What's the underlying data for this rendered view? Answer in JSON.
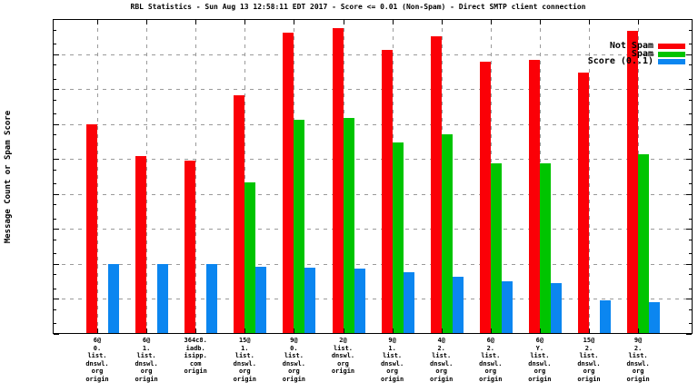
{
  "title": "RBL Statistics - Sun Aug 13 12:58:11 EDT 2017 - Score <= 0.01 (Non-Spam) - Direct SMTP client connection",
  "y_axis": {
    "label": "Message Count or Spam Score",
    "ticks": [
      "100000",
      "10000",
      "1000",
      "100",
      "10",
      "1",
      "0.1",
      "0.01",
      "0.001",
      "0.0001"
    ]
  },
  "legend": [
    {
      "label": "Not Spam",
      "color": "#fb0007"
    },
    {
      "label": "Spam",
      "color": "#00c400"
    },
    {
      "label": "Score (0..1)",
      "color": "#0b86f0"
    }
  ],
  "colors": {
    "axis": "#000000",
    "grid": "#9a9a9a",
    "background": "#ffffff"
  },
  "chart_data": {
    "type": "bar",
    "scale": "log",
    "ylim": [
      0.0001,
      100000
    ],
    "grid": "dashed-both-axes",
    "legend_position": "top-right-inside",
    "title": "RBL Statistics - Sun Aug 13 12:58:11 EDT 2017 - Score <= 0.01 (Non-Spam) - Direct SMTP client connection",
    "ylabel": "Message Count or Spam Score",
    "categories": [
      "6@\n0.\nlist.\ndnswl.\norg\norigin",
      "6@\n1.\nlist.\ndnswl.\norg\norigin",
      "364c8.\niadb.\nisipp.\ncom\norigin",
      "15@\n1.\nlist.\ndnswl.\norg\norigin",
      "9@\n0.\nlist.\ndnswl.\norg\norigin",
      "2@\nlist.\ndnswl.\norg\norigin",
      "9@\n1.\nlist.\ndnswl.\norg\norigin",
      "4@\n2.\nlist.\ndnswl.\norg\norigin",
      "6@\n2.\nlist.\ndnswl.\norg\norigin",
      "6@\nY.\nlist.\ndnswl.\norg\norigin",
      "15@\n2.\nlist.\ndnswl.\norg\norigin",
      "9@\n2.\nlist.\ndnswl.\norg\norigin"
    ],
    "series": [
      {
        "name": "Not Spam",
        "color": "#fb0007",
        "values": [
          100,
          12,
          9,
          670,
          42000,
          56000,
          13500,
          33000,
          6100,
          6700,
          3000,
          47000
        ]
      },
      {
        "name": "Spam",
        "color": "#00c400",
        "values": [
          null,
          null,
          null,
          2.2,
          135,
          148,
          30,
          52,
          7.5,
          7.5,
          null,
          14
        ]
      },
      {
        "name": "Score (0..1)",
        "color": "#0b86f0",
        "values": [
          0.01,
          0.01,
          0.01,
          0.0085,
          0.008,
          0.0073,
          0.0057,
          0.0042,
          0.0031,
          0.0029,
          0.0009,
          0.0008
        ]
      }
    ]
  }
}
